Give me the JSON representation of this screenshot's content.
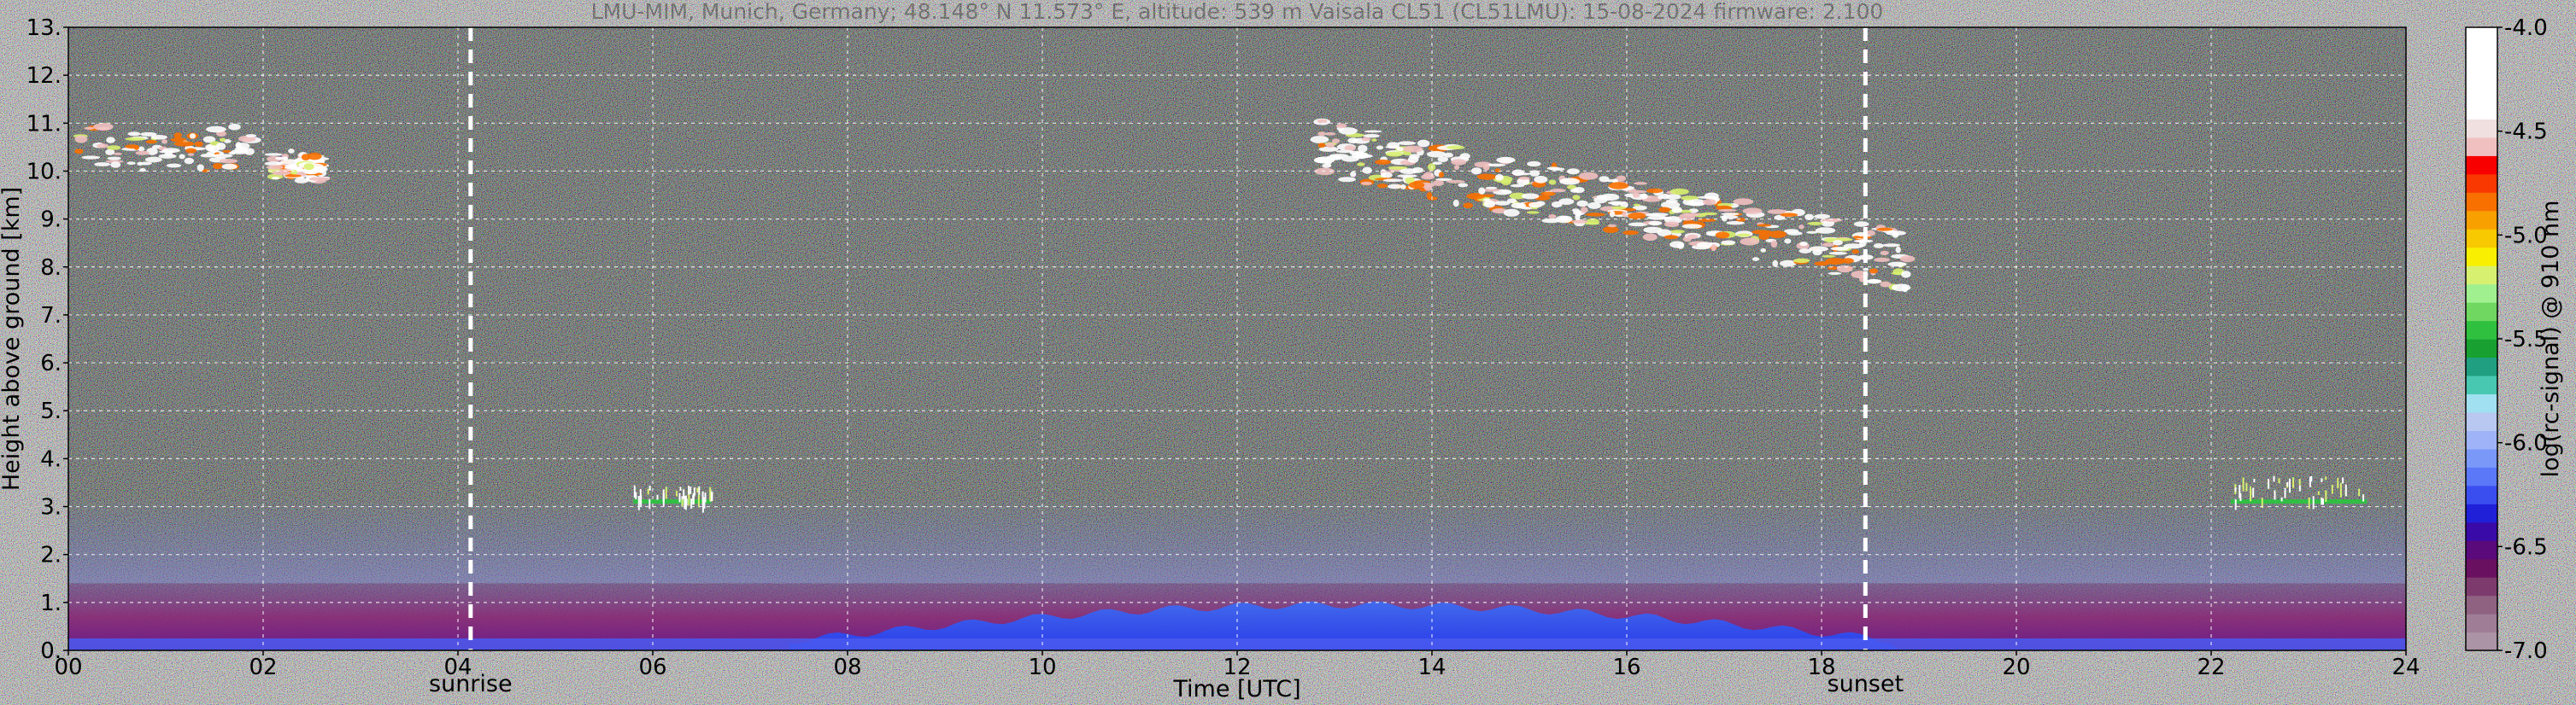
{
  "chart_data": {
    "type": "heatmap",
    "title": "LMU-MIM, Munich, Germany; 48.148° N 11.573° E, altitude: 539 m    Vaisala CL51 (CL51LMU): 15-08-2024    firmware: 2.100",
    "xlabel": "Time [UTC]",
    "ylabel": "Height above ground [km]",
    "xlim": [
      0,
      24
    ],
    "ylim": [
      0,
      13
    ],
    "x_ticks": [
      {
        "value": 0,
        "label": "00"
      },
      {
        "value": 2,
        "label": "02"
      },
      {
        "value": 4,
        "label": "04"
      },
      {
        "value": 6,
        "label": "06"
      },
      {
        "value": 8,
        "label": "08"
      },
      {
        "value": 10,
        "label": "10"
      },
      {
        "value": 12,
        "label": "12"
      },
      {
        "value": 14,
        "label": "14"
      },
      {
        "value": 16,
        "label": "16"
      },
      {
        "value": 18,
        "label": "18"
      },
      {
        "value": 20,
        "label": "20"
      },
      {
        "value": 22,
        "label": "22"
      },
      {
        "value": 24,
        "label": "24"
      }
    ],
    "y_ticks": [
      {
        "value": 0,
        "label": "0."
      },
      {
        "value": 1,
        "label": "1."
      },
      {
        "value": 2,
        "label": "2."
      },
      {
        "value": 3,
        "label": "3."
      },
      {
        "value": 4,
        "label": "4."
      },
      {
        "value": 5,
        "label": "5."
      },
      {
        "value": 6,
        "label": "6."
      },
      {
        "value": 7,
        "label": "7."
      },
      {
        "value": 8,
        "label": "8."
      },
      {
        "value": 9,
        "label": "9."
      },
      {
        "value": 10,
        "label": "10."
      },
      {
        "value": 11,
        "label": "11."
      },
      {
        "value": 12,
        "label": "12."
      },
      {
        "value": 13,
        "label": "13."
      }
    ],
    "grid": true,
    "annotations": [
      {
        "label": "sunrise",
        "x": 4.13
      },
      {
        "label": "sunset",
        "x": 18.45
      }
    ],
    "colorbar": {
      "label": "log(rc-signal) @ 910 nm",
      "range": [
        -7.0,
        -4.0
      ],
      "ticks": [
        {
          "value": -4.0,
          "label": "-4.0"
        },
        {
          "value": -4.5,
          "label": "-4.5"
        },
        {
          "value": -5.0,
          "label": "-5.0"
        },
        {
          "value": -5.5,
          "label": "-5.5"
        },
        {
          "value": -6.0,
          "label": "-6.0"
        },
        {
          "value": -6.5,
          "label": "-6.5"
        },
        {
          "value": -7.0,
          "label": "-7.0"
        }
      ],
      "colors": [
        "#ab94a5",
        "#9f7d96",
        "#906282",
        "#7d3b6d",
        "#6a1060",
        "#5a0a7a",
        "#3a0aa8",
        "#2020d8",
        "#3a4ef0",
        "#5a78f8",
        "#7a98f8",
        "#9fb4f8",
        "#b8c8f0",
        "#a0e0f0",
        "#48c8b0",
        "#20a080",
        "#18a030",
        "#30c040",
        "#70d860",
        "#a0f090",
        "#d8f070",
        "#f8f000",
        "#f8c800",
        "#f8a000",
        "#f87000",
        "#f83800",
        "#f80000",
        "#f0c0c0",
        "#f0e0e0",
        "#ffffff",
        "#ffffff",
        "#ffffff",
        "#ffffff",
        "#ffffff"
      ]
    },
    "features": [
      {
        "kind": "cirrus",
        "x": [
          0,
          1.9
        ],
        "y": [
          9.8,
          11.2
        ]
      },
      {
        "kind": "cirrus",
        "x": [
          2.1,
          2.6
        ],
        "y": [
          9.6,
          10.6
        ]
      },
      {
        "kind": "cirrus",
        "x": [
          12.8,
          18.9
        ],
        "y": [
          7.6,
          11.0
        ]
      },
      {
        "kind": "cloud",
        "x": [
          22.2,
          23.6
        ],
        "y": [
          3.0,
          3.5
        ]
      },
      {
        "kind": "cloud",
        "x": [
          5.8,
          6.6
        ],
        "y": [
          3.0,
          3.3
        ]
      },
      {
        "kind": "boundary_layer",
        "x": [
          0,
          24
        ],
        "y": [
          0,
          1.4
        ]
      },
      {
        "kind": "aerosol_layer",
        "x": [
          0,
          24
        ],
        "y": [
          1.4,
          3.2
        ]
      }
    ]
  }
}
